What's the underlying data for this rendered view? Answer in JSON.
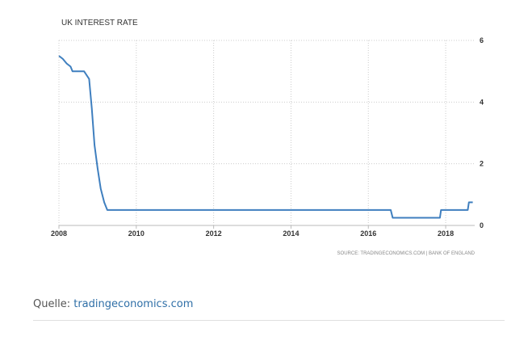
{
  "chart_data": {
    "type": "line",
    "title": "UK INTEREST RATE",
    "source": "SOURCE: TRADINGECONOMICS.COM | BANK OF ENGLAND",
    "x_ticks": [
      "2008",
      "2010",
      "2012",
      "2014",
      "2016",
      "2018"
    ],
    "y_ticks": [
      "0",
      "2",
      "4",
      "6"
    ],
    "xlim": [
      2008.0,
      2018.75
    ],
    "ylim": [
      0,
      6
    ],
    "y_axis_side": "right",
    "grid": true,
    "series": [
      {
        "color": "#3f7fbf",
        "x": [
          2008.0,
          2008.1,
          2008.2,
          2008.3,
          2008.35,
          2008.65,
          2008.78,
          2008.85,
          2008.92,
          2009.0,
          2009.08,
          2009.17,
          2009.25,
          2016.58,
          2016.63,
          2017.85,
          2017.88,
          2018.57,
          2018.6,
          2018.7
        ],
        "y": [
          5.5,
          5.4,
          5.25,
          5.15,
          5.0,
          5.0,
          4.75,
          3.8,
          2.6,
          1.85,
          1.2,
          0.75,
          0.5,
          0.5,
          0.25,
          0.25,
          0.5,
          0.5,
          0.75,
          0.75
        ]
      }
    ]
  },
  "caption": {
    "prefix": "Quelle:",
    "link": "tradingeconomics.com"
  }
}
